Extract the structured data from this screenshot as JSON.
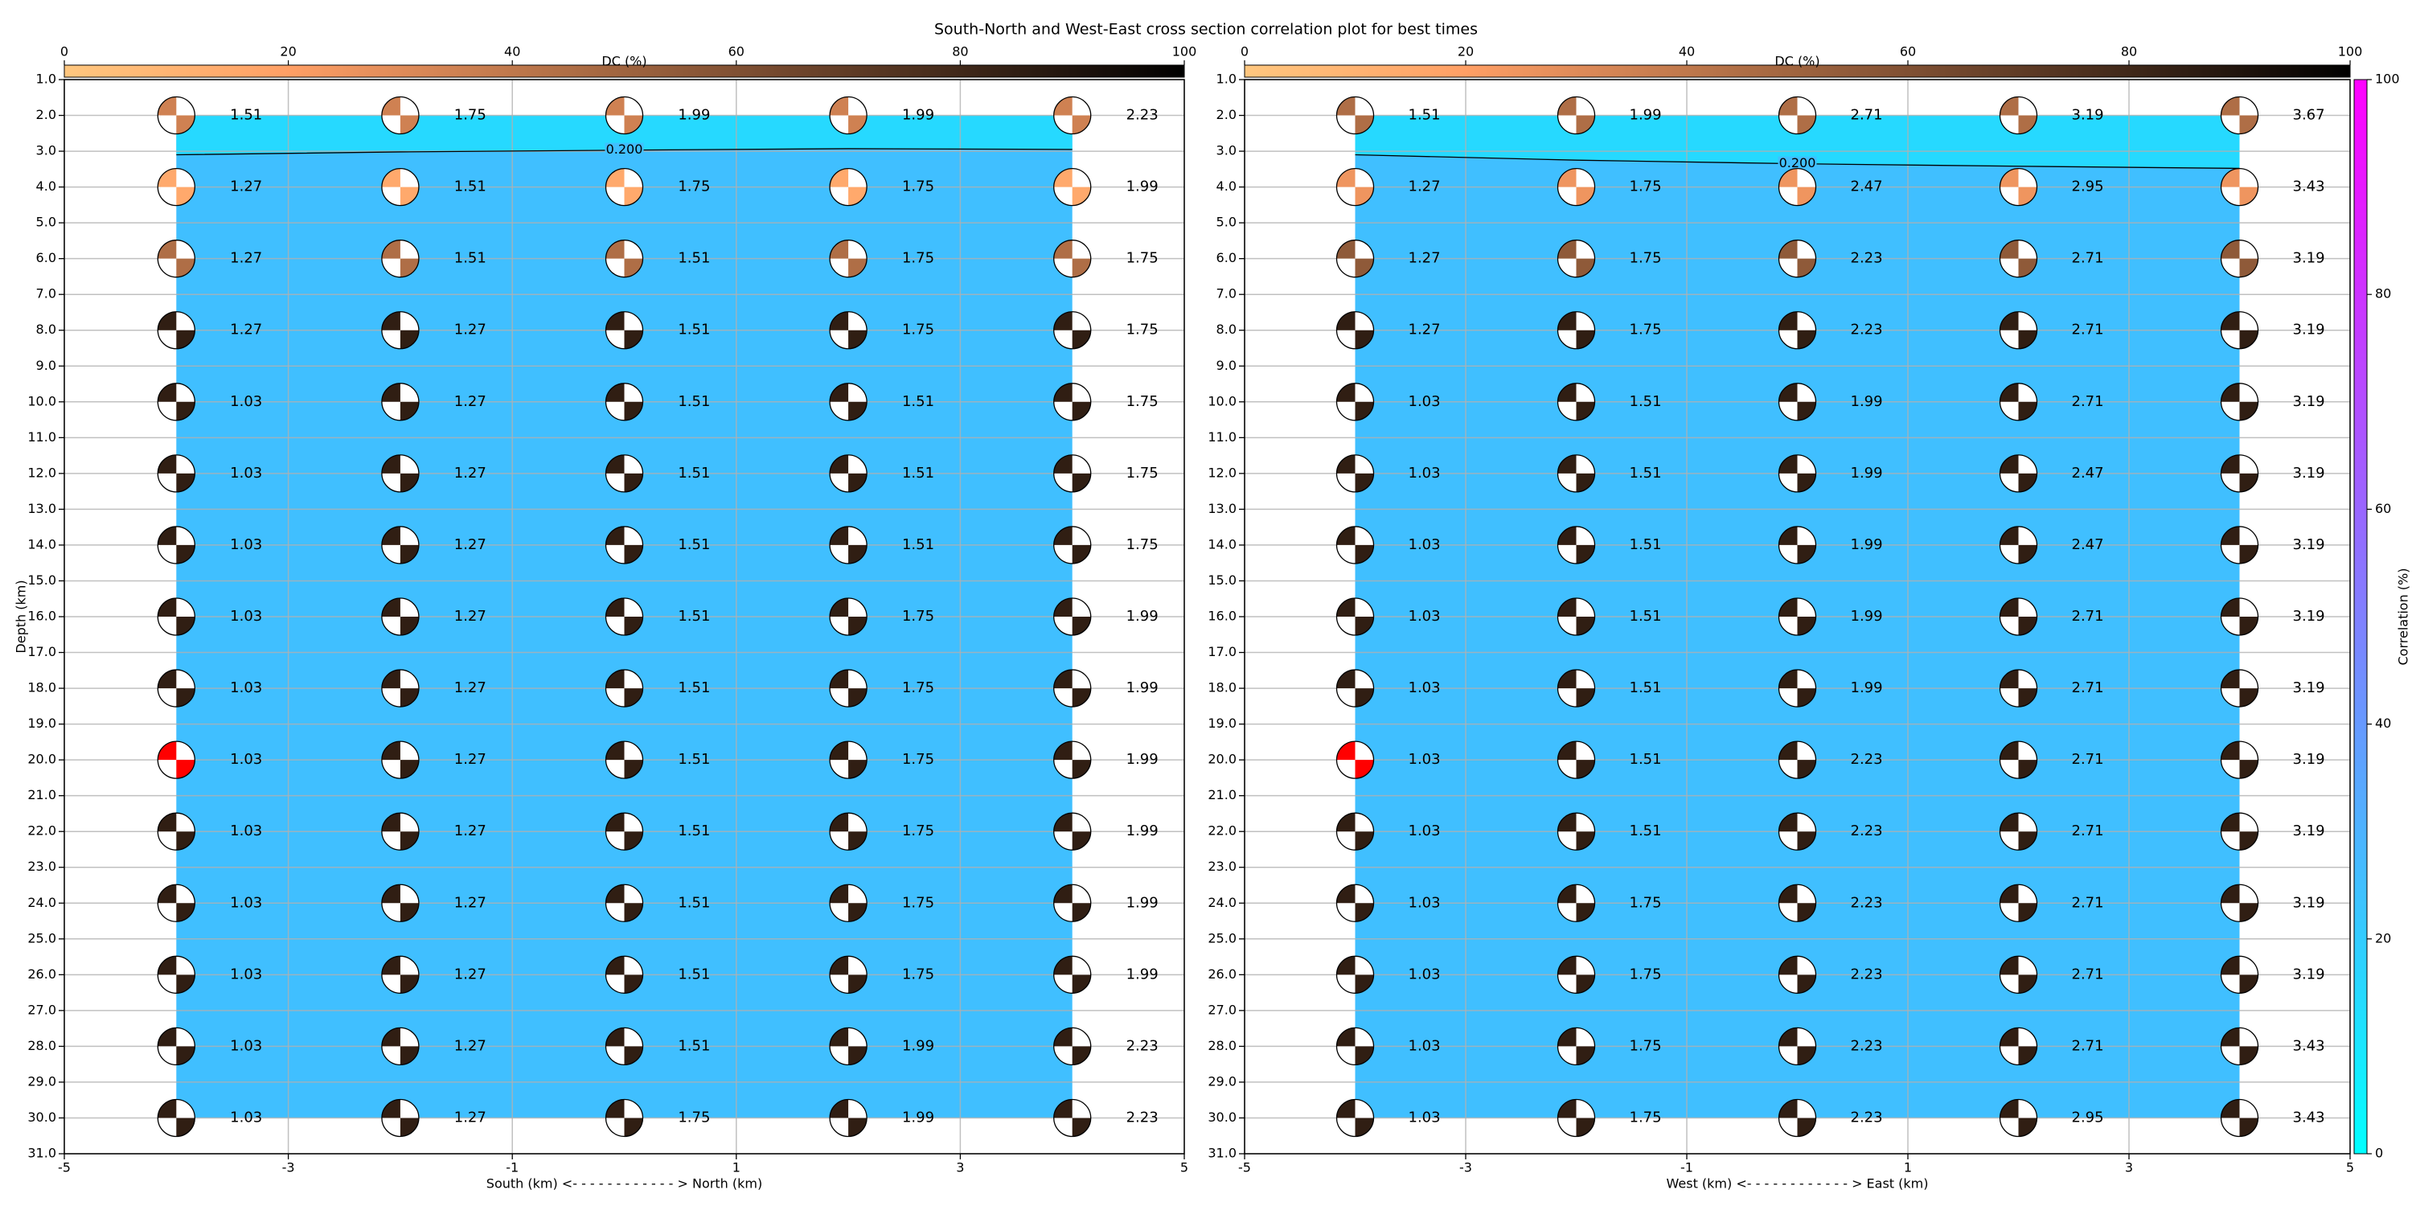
{
  "title": "South-North and West-East cross section correlation plot for best times",
  "chart_data": [
    {
      "type": "beachball",
      "xlabel": "South (km) <- - - - - - - - - - - - > North (km)",
      "ylabel": "Depth (km)",
      "xlim": [
        -5,
        5
      ],
      "xticks": [
        -5,
        -3,
        -1,
        1,
        3,
        5
      ],
      "ylim": [
        31,
        1
      ],
      "invert_y": true,
      "yticks": [
        {
          "value": 1,
          "label": "1.0"
        },
        {
          "value": 2,
          "label": "2.0"
        },
        {
          "value": 3,
          "label": "3.0"
        },
        {
          "value": 4,
          "label": "4.0"
        },
        {
          "value": 5,
          "label": "5.0"
        },
        {
          "value": 6,
          "label": "6.0"
        },
        {
          "value": 7,
          "label": "7.0"
        },
        {
          "value": 8,
          "label": "8.0"
        },
        {
          "value": 9,
          "label": "9.0"
        },
        {
          "value": 10,
          "label": "10.0"
        },
        {
          "value": 11,
          "label": "11.0"
        },
        {
          "value": 12,
          "label": "12.0"
        },
        {
          "value": 13,
          "label": "13.0"
        },
        {
          "value": 14,
          "label": "14.0"
        },
        {
          "value": 15,
          "label": "15.0"
        },
        {
          "value": 16,
          "label": "16.0"
        },
        {
          "value": 17,
          "label": "17.0"
        },
        {
          "value": 18,
          "label": "18.0"
        },
        {
          "value": 19,
          "label": "19.0"
        },
        {
          "value": 20,
          "label": "20.0"
        },
        {
          "value": 21,
          "label": "21.0"
        },
        {
          "value": 22,
          "label": "22.0"
        },
        {
          "value": 23,
          "label": "23.0"
        },
        {
          "value": 24,
          "label": "24.0"
        },
        {
          "value": 25,
          "label": "25.0"
        },
        {
          "value": 26,
          "label": "26.0"
        },
        {
          "value": 27,
          "label": "27.0"
        },
        {
          "value": 28,
          "label": "28.0"
        },
        {
          "value": 29,
          "label": "29.0"
        },
        {
          "value": 30,
          "label": "30.0"
        },
        {
          "value": 31,
          "label": "31.0"
        }
      ],
      "grid": true,
      "x": [
        -4,
        -2,
        0,
        2,
        4
      ],
      "depths": [
        2,
        4,
        6,
        8,
        10,
        12,
        14,
        16,
        18,
        20,
        22,
        24,
        26,
        28,
        30
      ],
      "values": [
        [
          1.51,
          1.75,
          1.99,
          1.99,
          2.23
        ],
        [
          1.27,
          1.51,
          1.75,
          1.75,
          1.99
        ],
        [
          1.27,
          1.51,
          1.51,
          1.75,
          1.75
        ],
        [
          1.27,
          1.27,
          1.51,
          1.75,
          1.75
        ],
        [
          1.03,
          1.27,
          1.51,
          1.51,
          1.75
        ],
        [
          1.03,
          1.27,
          1.51,
          1.51,
          1.75
        ],
        [
          1.03,
          1.27,
          1.51,
          1.51,
          1.75
        ],
        [
          1.03,
          1.27,
          1.51,
          1.75,
          1.99
        ],
        [
          1.03,
          1.27,
          1.51,
          1.75,
          1.99
        ],
        [
          1.03,
          1.27,
          1.51,
          1.75,
          1.99
        ],
        [
          1.03,
          1.27,
          1.51,
          1.75,
          1.99
        ],
        [
          1.03,
          1.27,
          1.51,
          1.75,
          1.99
        ],
        [
          1.03,
          1.27,
          1.51,
          1.75,
          1.99
        ],
        [
          1.03,
          1.27,
          1.51,
          1.99,
          2.23
        ],
        [
          1.03,
          1.27,
          1.75,
          1.99,
          2.23
        ]
      ],
      "dc": [
        35,
        15,
        45,
        85,
        85,
        85,
        85,
        85,
        85,
        85,
        85,
        85,
        85,
        85,
        85
      ],
      "best": {
        "x": -4,
        "depth": 20,
        "color": "#ff0000"
      },
      "field": {
        "x": [
          -4,
          4
        ],
        "depth": [
          2,
          30
        ],
        "corr_below": 25,
        "corr_above": 15
      },
      "contour": {
        "label": "0.200",
        "label_x": 0,
        "x": [
          -4,
          -2,
          0,
          2,
          4
        ],
        "depth": [
          3.1,
          3.02,
          2.97,
          2.93,
          2.95
        ]
      },
      "dc_colorbar": {
        "label": "DC (%)",
        "lim": [
          0,
          100
        ],
        "ticks": [
          0,
          20,
          40,
          60,
          80,
          100
        ]
      }
    },
    {
      "type": "beachball",
      "xlabel": "West (km) <- - - - - - - - - - - - > East (km)",
      "xlim": [
        -5,
        5
      ],
      "xticks": [
        -5,
        -3,
        -1,
        1,
        3,
        5
      ],
      "ylim": [
        31,
        1
      ],
      "invert_y": true,
      "yticks": [
        {
          "value": 1,
          "label": "1.0"
        },
        {
          "value": 2,
          "label": "2.0"
        },
        {
          "value": 3,
          "label": "3.0"
        },
        {
          "value": 4,
          "label": "4.0"
        },
        {
          "value": 5,
          "label": "5.0"
        },
        {
          "value": 6,
          "label": "6.0"
        },
        {
          "value": 7,
          "label": "7.0"
        },
        {
          "value": 8,
          "label": "8.0"
        },
        {
          "value": 9,
          "label": "9.0"
        },
        {
          "value": 10,
          "label": "10.0"
        },
        {
          "value": 11,
          "label": "11.0"
        },
        {
          "value": 12,
          "label": "12.0"
        },
        {
          "value": 13,
          "label": "13.0"
        },
        {
          "value": 14,
          "label": "14.0"
        },
        {
          "value": 15,
          "label": "15.0"
        },
        {
          "value": 16,
          "label": "16.0"
        },
        {
          "value": 17,
          "label": "17.0"
        },
        {
          "value": 18,
          "label": "18.0"
        },
        {
          "value": 19,
          "label": "19.0"
        },
        {
          "value": 20,
          "label": "20.0"
        },
        {
          "value": 21,
          "label": "21.0"
        },
        {
          "value": 22,
          "label": "22.0"
        },
        {
          "value": 23,
          "label": "23.0"
        },
        {
          "value": 24,
          "label": "24.0"
        },
        {
          "value": 25,
          "label": "25.0"
        },
        {
          "value": 26,
          "label": "26.0"
        },
        {
          "value": 27,
          "label": "27.0"
        },
        {
          "value": 28,
          "label": "28.0"
        },
        {
          "value": 29,
          "label": "29.0"
        },
        {
          "value": 30,
          "label": "30.0"
        },
        {
          "value": 31,
          "label": "31.0"
        }
      ],
      "grid": true,
      "x": [
        -4,
        -2,
        0,
        2,
        4
      ],
      "depths": [
        2,
        4,
        6,
        8,
        10,
        12,
        14,
        16,
        18,
        20,
        22,
        24,
        26,
        28,
        30
      ],
      "values": [
        [
          1.51,
          1.99,
          2.71,
          3.19,
          3.67
        ],
        [
          1.27,
          1.75,
          2.47,
          2.95,
          3.43
        ],
        [
          1.27,
          1.75,
          2.23,
          2.71,
          3.19
        ],
        [
          1.27,
          1.75,
          2.23,
          2.71,
          3.19
        ],
        [
          1.03,
          1.51,
          1.99,
          2.71,
          3.19
        ],
        [
          1.03,
          1.51,
          1.99,
          2.47,
          3.19
        ],
        [
          1.03,
          1.51,
          1.99,
          2.47,
          3.19
        ],
        [
          1.03,
          1.51,
          1.99,
          2.71,
          3.19
        ],
        [
          1.03,
          1.51,
          1.99,
          2.71,
          3.19
        ],
        [
          1.03,
          1.51,
          2.23,
          2.71,
          3.19
        ],
        [
          1.03,
          1.51,
          2.23,
          2.71,
          3.19
        ],
        [
          1.03,
          1.75,
          2.23,
          2.71,
          3.19
        ],
        [
          1.03,
          1.75,
          2.23,
          2.71,
          3.19
        ],
        [
          1.03,
          1.75,
          2.23,
          2.71,
          3.43
        ],
        [
          1.03,
          1.75,
          2.23,
          2.95,
          3.43
        ]
      ],
      "dc": [
        45,
        25,
        55,
        85,
        85,
        85,
        85,
        85,
        85,
        85,
        85,
        85,
        85,
        85,
        85
      ],
      "best": {
        "x": -4,
        "depth": 20,
        "color": "#ff0000"
      },
      "field": {
        "x": [
          -4,
          4
        ],
        "depth": [
          2,
          30
        ],
        "corr_below": 25,
        "corr_above": 15
      },
      "contour": {
        "label": "0.200",
        "label_x": 0,
        "x": [
          -4,
          -2,
          0,
          2,
          4
        ],
        "depth": [
          3.1,
          3.25,
          3.35,
          3.42,
          3.48
        ]
      },
      "dc_colorbar": {
        "label": "DC (%)",
        "lim": [
          0,
          100
        ],
        "ticks": [
          0,
          20,
          40,
          60,
          80,
          100
        ]
      },
      "corr_colorbar": {
        "label": "Correlation (%)",
        "lim": [
          0,
          100
        ],
        "ticks": [
          0,
          20,
          40,
          60,
          80,
          100
        ]
      }
    }
  ]
}
